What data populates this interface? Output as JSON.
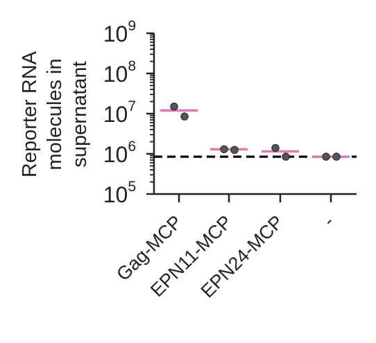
{
  "chart_data": {
    "type": "scatter",
    "title": "",
    "xlabel": "",
    "ylabel_lines": [
      "Reporter RNA",
      "molecules in",
      "supernatant"
    ],
    "yscale": "log",
    "ylim": [
      100000,
      1000000000
    ],
    "ytick_labels": [
      {
        "base": "10",
        "exp": "5"
      },
      {
        "base": "10",
        "exp": "6"
      },
      {
        "base": "10",
        "exp": "7"
      },
      {
        "base": "10",
        "exp": "8"
      },
      {
        "base": "10",
        "exp": "9"
      }
    ],
    "categories": [
      "Gag-MCP",
      "EPN11-MCP",
      "EPN24-MCP",
      "-"
    ],
    "points": [
      [
        15000000,
        8500000
      ],
      [
        1300000,
        1250000
      ],
      [
        1400000,
        850000
      ],
      [
        850000,
        850000
      ]
    ],
    "means": [
      12000000,
      1300000,
      1150000,
      850000
    ],
    "background_line": 850000,
    "grid": false,
    "legend": "none",
    "colors": {
      "axis": "#222222",
      "point": "#555555",
      "mean_bar": "#e07bb5",
      "reference_line": "#000000"
    }
  }
}
